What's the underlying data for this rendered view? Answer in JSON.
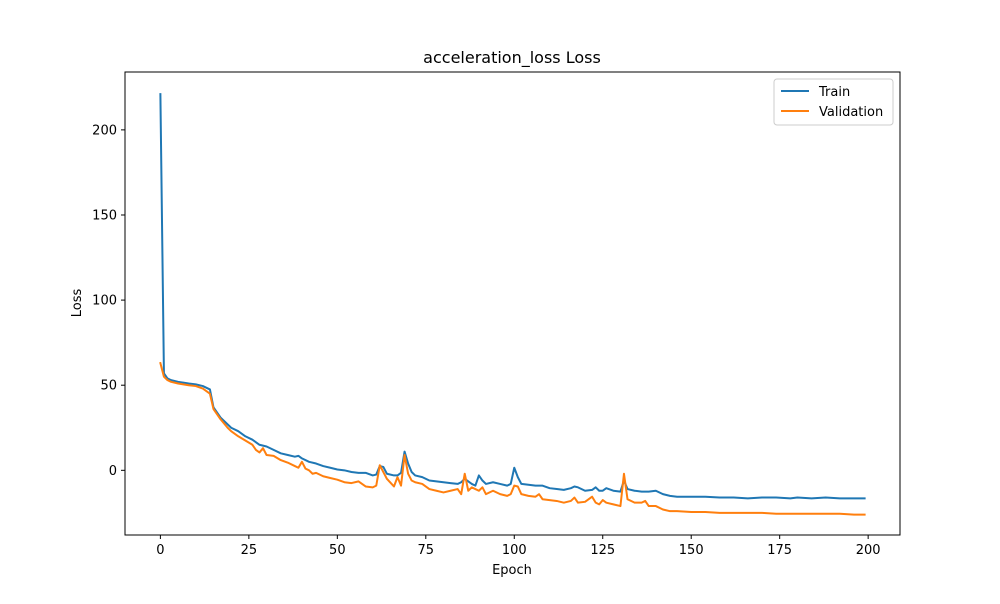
{
  "chart_data": {
    "type": "line",
    "title": "acceleration_loss Loss",
    "xlabel": "Epoch",
    "ylabel": "Loss",
    "xlim": [
      -10,
      209
    ],
    "ylim": [
      -38,
      234
    ],
    "xticks": [
      0,
      25,
      50,
      75,
      100,
      125,
      150,
      175,
      200
    ],
    "yticks": [
      0,
      50,
      100,
      150,
      200
    ],
    "grid": false,
    "legend_position": "top-right",
    "series": [
      {
        "name": "Train",
        "color": "#1f77b4",
        "points": [
          [
            0,
            221
          ],
          [
            1,
            57
          ],
          [
            2,
            54
          ],
          [
            3,
            53
          ],
          [
            5,
            52
          ],
          [
            8,
            51
          ],
          [
            10,
            50.5
          ],
          [
            12,
            49.5
          ],
          [
            14,
            47.5
          ],
          [
            15,
            37
          ],
          [
            17,
            31
          ],
          [
            19,
            27
          ],
          [
            20,
            25
          ],
          [
            22,
            23
          ],
          [
            24,
            20
          ],
          [
            26,
            18
          ],
          [
            28,
            15
          ],
          [
            30,
            14
          ],
          [
            32,
            12
          ],
          [
            34,
            10
          ],
          [
            36,
            9
          ],
          [
            38,
            8
          ],
          [
            39,
            8.5
          ],
          [
            40,
            7
          ],
          [
            42,
            5
          ],
          [
            44,
            4
          ],
          [
            46,
            2.5
          ],
          [
            48,
            1.5
          ],
          [
            50,
            0.5
          ],
          [
            52,
            0
          ],
          [
            54,
            -1
          ],
          [
            56,
            -1.5
          ],
          [
            58,
            -1.5
          ],
          [
            60,
            -3
          ],
          [
            61,
            -2.5
          ],
          [
            62,
            2.5
          ],
          [
            63,
            2
          ],
          [
            64,
            -2
          ],
          [
            66,
            -3
          ],
          [
            67,
            -3
          ],
          [
            68,
            -1.5
          ],
          [
            69,
            11
          ],
          [
            70,
            4
          ],
          [
            71,
            -1
          ],
          [
            72,
            -3
          ],
          [
            74,
            -4
          ],
          [
            76,
            -6
          ],
          [
            78,
            -6.5
          ],
          [
            80,
            -7
          ],
          [
            82,
            -7.5
          ],
          [
            84,
            -8
          ],
          [
            85,
            -7
          ],
          [
            86,
            -5
          ],
          [
            88,
            -8
          ],
          [
            89,
            -9
          ],
          [
            90,
            -3
          ],
          [
            91,
            -6
          ],
          [
            92,
            -8
          ],
          [
            94,
            -7
          ],
          [
            96,
            -8
          ],
          [
            98,
            -9
          ],
          [
            99,
            -8
          ],
          [
            100,
            1.5
          ],
          [
            101,
            -4
          ],
          [
            102,
            -8
          ],
          [
            104,
            -8.5
          ],
          [
            106,
            -9
          ],
          [
            108,
            -9
          ],
          [
            110,
            -10.5
          ],
          [
            112,
            -11
          ],
          [
            114,
            -11.5
          ],
          [
            116,
            -10.5
          ],
          [
            117,
            -9.5
          ],
          [
            118,
            -10
          ],
          [
            120,
            -12
          ],
          [
            122,
            -11.5
          ],
          [
            123,
            -10
          ],
          [
            124,
            -12
          ],
          [
            125,
            -12
          ],
          [
            126,
            -10.5
          ],
          [
            128,
            -12
          ],
          [
            130,
            -12.5
          ],
          [
            131,
            -6
          ],
          [
            132,
            -11
          ],
          [
            134,
            -12
          ],
          [
            136,
            -12.5
          ],
          [
            138,
            -12.5
          ],
          [
            140,
            -12
          ],
          [
            142,
            -14
          ],
          [
            144,
            -15
          ],
          [
            146,
            -15.5
          ],
          [
            150,
            -15.5
          ],
          [
            154,
            -15.5
          ],
          [
            158,
            -16
          ],
          [
            162,
            -16
          ],
          [
            166,
            -16.5
          ],
          [
            170,
            -16
          ],
          [
            174,
            -16
          ],
          [
            178,
            -16.5
          ],
          [
            180,
            -16
          ],
          [
            184,
            -16.5
          ],
          [
            188,
            -16
          ],
          [
            192,
            -16.5
          ],
          [
            196,
            -16.5
          ],
          [
            199,
            -16.5
          ]
        ]
      },
      {
        "name": "Validation",
        "color": "#ff7f0e",
        "points": [
          [
            0,
            63
          ],
          [
            1,
            55
          ],
          [
            2,
            53
          ],
          [
            3,
            52
          ],
          [
            5,
            51
          ],
          [
            8,
            50
          ],
          [
            10,
            49.5
          ],
          [
            12,
            48
          ],
          [
            14,
            45
          ],
          [
            15,
            36
          ],
          [
            17,
            30
          ],
          [
            19,
            25
          ],
          [
            20,
            23
          ],
          [
            22,
            20
          ],
          [
            24,
            17.5
          ],
          [
            26,
            15
          ],
          [
            27,
            12
          ],
          [
            28,
            10.5
          ],
          [
            29,
            13
          ],
          [
            30,
            9
          ],
          [
            32,
            8.5
          ],
          [
            34,
            6
          ],
          [
            36,
            4.5
          ],
          [
            38,
            2.5
          ],
          [
            39,
            1.5
          ],
          [
            40,
            5
          ],
          [
            41,
            1
          ],
          [
            42,
            0
          ],
          [
            43,
            -2
          ],
          [
            44,
            -1.5
          ],
          [
            46,
            -3.5
          ],
          [
            48,
            -4.5
          ],
          [
            50,
            -5.5
          ],
          [
            52,
            -7
          ],
          [
            54,
            -7.5
          ],
          [
            56,
            -6.5
          ],
          [
            58,
            -9.5
          ],
          [
            60,
            -10
          ],
          [
            61,
            -9
          ],
          [
            62,
            3
          ],
          [
            63,
            -1
          ],
          [
            64,
            -5
          ],
          [
            66,
            -9.5
          ],
          [
            67,
            -4
          ],
          [
            68,
            -9
          ],
          [
            69,
            9
          ],
          [
            70,
            -2
          ],
          [
            71,
            -6
          ],
          [
            72,
            -7
          ],
          [
            74,
            -8
          ],
          [
            76,
            -11
          ],
          [
            78,
            -12
          ],
          [
            80,
            -13
          ],
          [
            82,
            -12
          ],
          [
            84,
            -11
          ],
          [
            85,
            -14
          ],
          [
            86,
            -2
          ],
          [
            87,
            -12
          ],
          [
            88,
            -10
          ],
          [
            89,
            -11
          ],
          [
            90,
            -12
          ],
          [
            91,
            -10
          ],
          [
            92,
            -14
          ],
          [
            94,
            -12
          ],
          [
            96,
            -14
          ],
          [
            98,
            -15
          ],
          [
            99,
            -14
          ],
          [
            100,
            -9
          ],
          [
            101,
            -9.5
          ],
          [
            102,
            -14
          ],
          [
            104,
            -15
          ],
          [
            106,
            -15.5
          ],
          [
            107,
            -14
          ],
          [
            108,
            -17
          ],
          [
            110,
            -17.5
          ],
          [
            112,
            -18
          ],
          [
            114,
            -19
          ],
          [
            116,
            -18
          ],
          [
            117,
            -16
          ],
          [
            118,
            -19
          ],
          [
            120,
            -18.5
          ],
          [
            122,
            -15.5
          ],
          [
            123,
            -19
          ],
          [
            124,
            -20
          ],
          [
            125,
            -17.5
          ],
          [
            126,
            -19
          ],
          [
            128,
            -20
          ],
          [
            130,
            -21
          ],
          [
            131,
            -2
          ],
          [
            132,
            -17
          ],
          [
            134,
            -19
          ],
          [
            136,
            -19
          ],
          [
            137,
            -18
          ],
          [
            138,
            -21
          ],
          [
            140,
            -21
          ],
          [
            142,
            -23
          ],
          [
            144,
            -24
          ],
          [
            146,
            -24
          ],
          [
            150,
            -24.5
          ],
          [
            154,
            -24.5
          ],
          [
            158,
            -25
          ],
          [
            162,
            -25
          ],
          [
            166,
            -25
          ],
          [
            170,
            -25
          ],
          [
            174,
            -25.5
          ],
          [
            178,
            -25.5
          ],
          [
            180,
            -25.5
          ],
          [
            184,
            -25.5
          ],
          [
            188,
            -25.5
          ],
          [
            192,
            -25.5
          ],
          [
            196,
            -26
          ],
          [
            199,
            -26
          ]
        ]
      }
    ]
  }
}
